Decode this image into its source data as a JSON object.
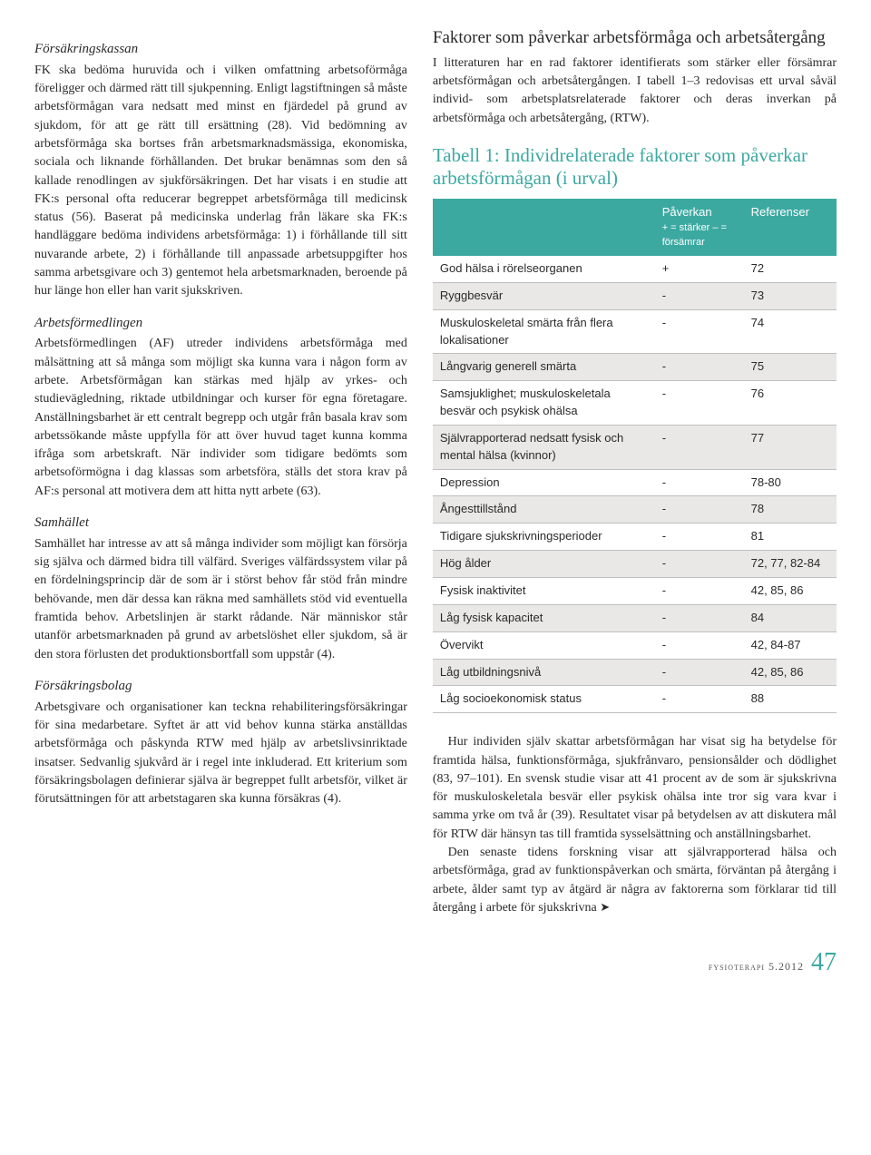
{
  "colors": {
    "accent": "#3ca9a1",
    "text": "#2a2a2a",
    "shade": "#e9e8e6",
    "rule": "#bfbfbf"
  },
  "left": {
    "sec1": {
      "title": "Försäkringskassan",
      "text": "FK ska bedöma huruvida och i vilken omfattning arbetsoförmåga föreligger och därmed rätt till sjukpenning. Enligt lagstiftningen så måste arbetsförmågan vara nedsatt med minst en fjärdedel på grund av sjukdom, för att ge rätt till ersättning (28). Vid bedömning av arbetsförmåga ska bortses från arbetsmarknadsmässiga, ekonomiska, sociala och liknande förhållanden. Det brukar benämnas som den så kallade renodlingen av sjukförsäkringen. Det har visats i en studie att FK:s personal ofta reducerar begreppet arbetsförmåga till medicinsk status (56). Baserat på medicinska underlag från läkare ska FK:s handläggare bedöma individens arbetsförmåga: 1) i förhållande till sitt nuvarande arbete, 2) i förhållande till anpassade arbetsuppgifter hos samma arbetsgivare och 3) gentemot hela arbetsmarknaden, beroende på hur länge hon eller han varit sjukskriven."
    },
    "sec2": {
      "title": "Arbetsförmedlingen",
      "text": "Arbetsförmedlingen (AF) utreder individens arbetsförmåga med målsättning att så många som möjligt ska kunna vara i någon form av arbete. Arbetsförmågan kan stärkas med hjälp av yrkes- och studievägledning, riktade utbildningar och kurser för egna företagare. Anställningsbarhet är ett centralt begrepp och utgår från basala krav som arbetssökande måste uppfylla för att över huvud taget kunna komma ifråga som arbetskraft. När individer som tidigare bedömts som arbetsoförmögna i dag klassas som arbetsföra, ställs det stora krav på AF:s personal att motivera dem att hitta nytt arbete (63)."
    },
    "sec3": {
      "title": "Samhället",
      "text": "Samhället har intresse av att så många individer som möjligt kan försörja sig själva och därmed bidra till välfärd. Sveriges välfärdssystem vilar på en fördelningsprincip där de som är i störst behov får stöd från mindre behövande, men där dessa kan räkna med samhällets stöd vid eventuella framtida behov. Arbetslinjen är starkt rådande. När människor står utanför arbetsmarknaden på grund av arbetslöshet eller sjukdom, så är den stora förlusten det produktionsbortfall som uppstår (4)."
    },
    "sec4": {
      "title": "Försäkringsbolag",
      "text": "Arbetsgivare och organisationer kan teckna rehabiliteringsförsäkringar för sina medarbetare. Syftet är att vid behov kunna stärka anställdas arbetsförmåga och påskynda RTW med hjälp av arbetslivsinriktade insatser. Sedvanlig sjukvård är i regel inte inkluderad. Ett kriterium som försäkringsbolagen definierar själva är begreppet fullt arbetsför, vilket är förutsättningen för att arbetstagaren ska kunna försäkras (4)."
    }
  },
  "right": {
    "heading": "Faktorer som påverkar arbetsförmåga och arbetsåtergång",
    "intro": "I litteraturen har en rad faktorer identifierats som stärker eller försämrar arbetsförmågan och arbetsåtergången. I tabell 1–3 redovisas ett urval såväl individ- som arbetsplatsrelaterade faktorer och deras inverkan på arbetsförmåga och arbetsåtergång, (RTW).",
    "tableTitle": "Tabell 1: Individrelaterade faktorer som påverkar arbetsförmågan (i urval)",
    "tableHead": {
      "c1": "",
      "c2": "Påverkan",
      "c2sub": "+ = stärker\n– = försämrar",
      "c3": "Referenser"
    },
    "rows": [
      {
        "f": "God hälsa i rörelseorganen",
        "p": "+",
        "r": "72"
      },
      {
        "f": "Ryggbesvär",
        "p": "-",
        "r": "73"
      },
      {
        "f": "Muskuloskeletal smärta från flera lokalisationer",
        "p": "-",
        "r": "74"
      },
      {
        "f": "Långvarig generell smärta",
        "p": "-",
        "r": "75"
      },
      {
        "f": "Samsjuklighet; muskuloskeletala besvär och psykisk ohälsa",
        "p": "-",
        "r": "76"
      },
      {
        "f": "Självrapporterad nedsatt fysisk och mental hälsa (kvinnor)",
        "p": "-",
        "r": "77"
      },
      {
        "f": "Depression",
        "p": "-",
        "r": "78-80"
      },
      {
        "f": "Ångesttillstånd",
        "p": "-",
        "r": "78"
      },
      {
        "f": "Tidigare sjukskrivningsperioder",
        "p": "-",
        "r": "81"
      },
      {
        "f": "Hög ålder",
        "p": "-",
        "r": "72, 77, 82-84"
      },
      {
        "f": "Fysisk inaktivitet",
        "p": "-",
        "r": "42, 85, 86"
      },
      {
        "f": "Låg fysisk kapacitet",
        "p": "-",
        "r": "84"
      },
      {
        "f": "Övervikt",
        "p": "-",
        "r": "42, 84-87"
      },
      {
        "f": "Låg utbildningsnivå",
        "p": "-",
        "r": "42, 85, 86"
      },
      {
        "f": "Låg socioekonomisk status",
        "p": "-",
        "r": "88"
      }
    ],
    "lower1": "Hur individen själv skattar arbetsförmågan har visat sig ha betydelse för framtida hälsa, funktionsförmåga, sjukfrånvaro, pensionsålder och dödlighet (83, 97–101). En svensk studie visar att 41 procent av de som är sjukskrivna för muskuloskeletala besvär eller psykisk ohälsa inte tror sig vara kvar i samma yrke om två år (39). Resultatet visar på betydelsen av att diskutera mål för RTW där hänsyn tas till framtida sysselsättning och anställningsbarhet.",
    "lower2": "Den senaste tidens forskning visar att självrapporterad hälsa och arbetsförmåga, grad av funktionspåverkan och smärta, förväntan på återgång i arbete, ålder samt typ av åtgärd är några av faktorerna som förklarar tid till återgång i arbete för sjukskrivna"
  },
  "footer": {
    "mag": "fysioterapi 5.2012",
    "page": "47"
  }
}
